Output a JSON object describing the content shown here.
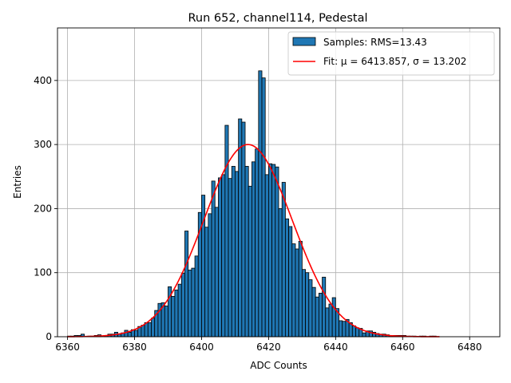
{
  "chart_data": {
    "type": "bar",
    "title": "Run 652, channel114, Pedestal",
    "xlabel": "ADC Counts",
    "ylabel": "Entries",
    "xlim": [
      6357,
      6489
    ],
    "ylim": [
      0,
      482
    ],
    "xticks": [
      6360,
      6380,
      6400,
      6420,
      6440,
      6460,
      6480
    ],
    "yticks": [
      0,
      100,
      200,
      300,
      400
    ],
    "grid": true,
    "legend_position": "top-right",
    "bin_width": 1,
    "bins": {
      "start": 6360,
      "values": [
        1,
        1,
        2,
        2,
        4,
        0,
        1,
        1,
        2,
        3,
        0,
        2,
        4,
        4,
        7,
        4,
        6,
        10,
        7,
        11,
        10,
        16,
        18,
        22,
        22,
        29,
        41,
        52,
        53,
        48,
        78,
        63,
        73,
        82,
        99,
        165,
        104,
        107,
        126,
        194,
        221,
        171,
        192,
        243,
        202,
        248,
        253,
        330,
        247,
        266,
        258,
        340,
        335,
        266,
        235,
        273,
        293,
        415,
        404,
        253,
        270,
        269,
        265,
        200,
        241,
        184,
        172,
        145,
        137,
        149,
        105,
        100,
        89,
        77,
        62,
        68,
        93,
        45,
        51,
        61,
        44,
        25,
        24,
        27,
        22,
        17,
        14,
        13,
        6,
        9,
        9,
        7,
        5,
        4,
        4,
        3,
        2,
        2,
        2,
        2,
        2,
        1,
        1,
        1,
        0,
        1,
        1,
        0,
        1,
        1,
        0,
        0,
        0
      ]
    },
    "series": [
      {
        "name": "Samples: RMS=13.43",
        "kind": "histogram",
        "color": "#1f77b4",
        "edgecolor": "#000000"
      },
      {
        "name": "Fit: μ = 6413.857, σ = 13.202",
        "kind": "gaussian",
        "color": "#ff0000",
        "mu": 6413.857,
        "sigma": 13.202,
        "amplitude": 300,
        "x_range": [
          6360,
          6471
        ]
      }
    ]
  }
}
